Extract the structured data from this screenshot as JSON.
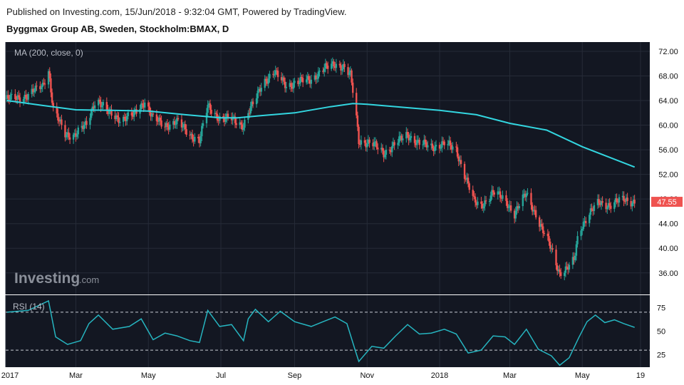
{
  "header": {
    "published": "Published on Investing.com, 15/Jun/2018 - 9:32:04 GMT, Powered by TradingView.",
    "title": "Byggmax Group AB, Sweden, Stockholm:BMAX, D"
  },
  "indicators": {
    "ma_label": "MA (200, close, 0)",
    "rsi_label": "RSI (14)"
  },
  "logo": {
    "name": "Investing",
    "suffix": ".com"
  },
  "colors": {
    "background": "#131722",
    "up": "#26a69a",
    "down": "#ef5350",
    "ma": "#33d6e0",
    "rsi": "#26b5c0",
    "price_tag": "#ef5350"
  },
  "chart_data": [
    {
      "type": "candlestick",
      "title": "Byggmax Group AB, Sweden, Stockholm:BMAX, D",
      "x_labels": [
        "2017",
        "Mar",
        "May",
        "Jul",
        "Sep",
        "Nov",
        "2018",
        "Mar",
        "May",
        "19"
      ],
      "y_ticks": [
        "72.00",
        "68.00",
        "64.00",
        "60.00",
        "56.00",
        "52.00",
        "48.00",
        "44.00",
        "40.00",
        "36.00"
      ],
      "ylim": [
        32.5,
        73.5
      ],
      "last_price": "47.55",
      "price_series": [
        {
          "date": "2017-01-02",
          "close": 64.2
        },
        {
          "date": "2017-01-20",
          "close": 64.8
        },
        {
          "date": "2017-02-01",
          "close": 66.5
        },
        {
          "date": "2017-02-06",
          "close": 69.0
        },
        {
          "date": "2017-02-10",
          "close": 62.5
        },
        {
          "date": "2017-02-20",
          "close": 58.5
        },
        {
          "date": "2017-02-28",
          "close": 58.5
        },
        {
          "date": "2017-03-10",
          "close": 60.0
        },
        {
          "date": "2017-03-18",
          "close": 64.5
        },
        {
          "date": "2017-03-28",
          "close": 62.0
        },
        {
          "date": "2017-04-08",
          "close": 61.0
        },
        {
          "date": "2017-04-18",
          "close": 61.5
        },
        {
          "date": "2017-04-28",
          "close": 64.0
        },
        {
          "date": "2017-05-05",
          "close": 61.0
        },
        {
          "date": "2017-05-15",
          "close": 60.0
        },
        {
          "date": "2017-05-25",
          "close": 60.5
        },
        {
          "date": "2017-06-05",
          "close": 58.5
        },
        {
          "date": "2017-06-13",
          "close": 57.5
        },
        {
          "date": "2017-06-20",
          "close": 63.0
        },
        {
          "date": "2017-07-01",
          "close": 61.0
        },
        {
          "date": "2017-07-10",
          "close": 61.0
        },
        {
          "date": "2017-07-20",
          "close": 60.0
        },
        {
          "date": "2017-07-24",
          "close": 62.0
        },
        {
          "date": "2017-07-30",
          "close": 64.0
        },
        {
          "date": "2017-08-05",
          "close": 67.0
        },
        {
          "date": "2017-08-15",
          "close": 68.5
        },
        {
          "date": "2017-08-25",
          "close": 66.5
        },
        {
          "date": "2017-09-05",
          "close": 67.0
        },
        {
          "date": "2017-09-15",
          "close": 67.5
        },
        {
          "date": "2017-09-25",
          "close": 69.0
        },
        {
          "date": "2017-10-05",
          "close": 70.0
        },
        {
          "date": "2017-10-12",
          "close": 69.5
        },
        {
          "date": "2017-10-18",
          "close": 68.0
        },
        {
          "date": "2017-10-22",
          "close": 63.0
        },
        {
          "date": "2017-10-25",
          "close": 57.5
        },
        {
          "date": "2017-11-05",
          "close": 57.0
        },
        {
          "date": "2017-11-15",
          "close": 55.5
        },
        {
          "date": "2017-11-25",
          "close": 57.0
        },
        {
          "date": "2017-12-05",
          "close": 58.5
        },
        {
          "date": "2017-12-15",
          "close": 57.0
        },
        {
          "date": "2017-12-25",
          "close": 56.5
        },
        {
          "date": "2018-01-05",
          "close": 57.0
        },
        {
          "date": "2018-01-15",
          "close": 56.0
        },
        {
          "date": "2018-01-22",
          "close": 52.0
        },
        {
          "date": "2018-01-30",
          "close": 47.5
        },
        {
          "date": "2018-02-05",
          "close": 47.0
        },
        {
          "date": "2018-02-15",
          "close": 49.0
        },
        {
          "date": "2018-02-25",
          "close": 48.0
        },
        {
          "date": "2018-03-05",
          "close": 45.5
        },
        {
          "date": "2018-03-15",
          "close": 49.0
        },
        {
          "date": "2018-03-22",
          "close": 46.0
        },
        {
          "date": "2018-03-28",
          "close": 43.0
        },
        {
          "date": "2018-04-05",
          "close": 40.0
        },
        {
          "date": "2018-04-12",
          "close": 36.0
        },
        {
          "date": "2018-04-18",
          "close": 36.5
        },
        {
          "date": "2018-04-24",
          "close": 38.0
        },
        {
          "date": "2018-04-28",
          "close": 43.0
        },
        {
          "date": "2018-05-05",
          "close": 45.0
        },
        {
          "date": "2018-05-15",
          "close": 47.5
        },
        {
          "date": "2018-05-25",
          "close": 47.0
        },
        {
          "date": "2018-06-05",
          "close": 48.0
        },
        {
          "date": "2018-06-14",
          "close": 47.55
        }
      ],
      "ma_200": [
        {
          "date": "2017-01-02",
          "value": 64.0
        },
        {
          "date": "2017-02-01",
          "value": 63.2
        },
        {
          "date": "2017-03-01",
          "value": 62.5
        },
        {
          "date": "2017-04-01",
          "value": 62.4
        },
        {
          "date": "2017-05-01",
          "value": 62.3
        },
        {
          "date": "2017-06-01",
          "value": 61.7
        },
        {
          "date": "2017-07-01",
          "value": 61.2
        },
        {
          "date": "2017-07-15",
          "value": 61.2
        },
        {
          "date": "2017-08-01",
          "value": 61.5
        },
        {
          "date": "2017-09-01",
          "value": 62.0
        },
        {
          "date": "2017-10-01",
          "value": 63.0
        },
        {
          "date": "2017-10-20",
          "value": 63.5
        },
        {
          "date": "2017-11-01",
          "value": 63.4
        },
        {
          "date": "2017-12-01",
          "value": 62.9
        },
        {
          "date": "2018-01-01",
          "value": 62.4
        },
        {
          "date": "2018-02-01",
          "value": 61.7
        },
        {
          "date": "2018-03-01",
          "value": 60.3
        },
        {
          "date": "2018-04-01",
          "value": 59.2
        },
        {
          "date": "2018-05-01",
          "value": 56.5
        },
        {
          "date": "2018-06-14",
          "value": 53.2
        }
      ]
    },
    {
      "type": "line",
      "title": "RSI (14)",
      "y_ticks": [
        "75",
        "50",
        "25"
      ],
      "ylim": [
        12,
        88
      ],
      "overbought": 70,
      "oversold": 30,
      "values": [
        {
          "date": "2017-01-02",
          "value": 70
        },
        {
          "date": "2017-01-20",
          "value": 72
        },
        {
          "date": "2017-02-06",
          "value": 82
        },
        {
          "date": "2017-02-12",
          "value": 44
        },
        {
          "date": "2017-02-22",
          "value": 36
        },
        {
          "date": "2017-03-05",
          "value": 40
        },
        {
          "date": "2017-03-12",
          "value": 58
        },
        {
          "date": "2017-03-20",
          "value": 67
        },
        {
          "date": "2017-04-01",
          "value": 52
        },
        {
          "date": "2017-04-15",
          "value": 55
        },
        {
          "date": "2017-04-25",
          "value": 63
        },
        {
          "date": "2017-05-05",
          "value": 41
        },
        {
          "date": "2017-05-15",
          "value": 48
        },
        {
          "date": "2017-05-25",
          "value": 45
        },
        {
          "date": "2017-06-05",
          "value": 40
        },
        {
          "date": "2017-06-13",
          "value": 38
        },
        {
          "date": "2017-06-20",
          "value": 72
        },
        {
          "date": "2017-06-30",
          "value": 55
        },
        {
          "date": "2017-07-10",
          "value": 57
        },
        {
          "date": "2017-07-20",
          "value": 40
        },
        {
          "date": "2017-07-24",
          "value": 63
        },
        {
          "date": "2017-07-30",
          "value": 73
        },
        {
          "date": "2017-08-10",
          "value": 60
        },
        {
          "date": "2017-08-20",
          "value": 71
        },
        {
          "date": "2017-09-01",
          "value": 60
        },
        {
          "date": "2017-09-15",
          "value": 55
        },
        {
          "date": "2017-09-25",
          "value": 60
        },
        {
          "date": "2017-10-05",
          "value": 65
        },
        {
          "date": "2017-10-15",
          "value": 58
        },
        {
          "date": "2017-10-22",
          "value": 30
        },
        {
          "date": "2017-10-25",
          "value": 18
        },
        {
          "date": "2017-11-05",
          "value": 34
        },
        {
          "date": "2017-11-15",
          "value": 32
        },
        {
          "date": "2017-11-25",
          "value": 45
        },
        {
          "date": "2017-12-05",
          "value": 57
        },
        {
          "date": "2017-12-15",
          "value": 47
        },
        {
          "date": "2017-12-25",
          "value": 48
        },
        {
          "date": "2018-01-05",
          "value": 52
        },
        {
          "date": "2018-01-15",
          "value": 47
        },
        {
          "date": "2018-01-25",
          "value": 27
        },
        {
          "date": "2018-02-05",
          "value": 30
        },
        {
          "date": "2018-02-15",
          "value": 45
        },
        {
          "date": "2018-02-25",
          "value": 44
        },
        {
          "date": "2018-03-05",
          "value": 36
        },
        {
          "date": "2018-03-15",
          "value": 52
        },
        {
          "date": "2018-03-25",
          "value": 31
        },
        {
          "date": "2018-04-05",
          "value": 24
        },
        {
          "date": "2018-04-12",
          "value": 14
        },
        {
          "date": "2018-04-20",
          "value": 22
        },
        {
          "date": "2018-04-28",
          "value": 43
        },
        {
          "date": "2018-05-05",
          "value": 60
        },
        {
          "date": "2018-05-12",
          "value": 67
        },
        {
          "date": "2018-05-20",
          "value": 59
        },
        {
          "date": "2018-05-28",
          "value": 62
        },
        {
          "date": "2018-06-05",
          "value": 58
        },
        {
          "date": "2018-06-14",
          "value": 54
        }
      ]
    }
  ]
}
